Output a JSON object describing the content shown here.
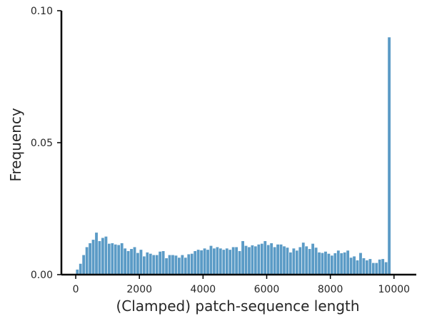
{
  "chart_data": {
    "type": "bar",
    "title": "",
    "xlabel": "(Clamped) patch-sequence length",
    "ylabel": "Frequency",
    "xlim": [
      -450,
      10700
    ],
    "ylim": [
      0,
      0.1
    ],
    "xticks": [
      0,
      2000,
      4000,
      6000,
      8000,
      10000
    ],
    "xtick_labels": [
      "0",
      "2000",
      "4000",
      "6000",
      "8000",
      "10000"
    ],
    "yticks": [
      0,
      0.05,
      0.1
    ],
    "ytick_labels": [
      "0.00",
      "0.05",
      "0.10"
    ],
    "grid": false,
    "bar_color": "#5b9bc6",
    "bar_edge_color": "#ffffff",
    "bin_width": 100,
    "bin_start": 0,
    "values": [
      0.002,
      0.0042,
      0.0075,
      0.0105,
      0.012,
      0.0133,
      0.016,
      0.0128,
      0.014,
      0.0145,
      0.0118,
      0.012,
      0.0115,
      0.0113,
      0.012,
      0.01,
      0.009,
      0.0098,
      0.0105,
      0.0083,
      0.0095,
      0.007,
      0.0085,
      0.008,
      0.0075,
      0.0075,
      0.0088,
      0.009,
      0.0063,
      0.0075,
      0.0075,
      0.0073,
      0.0065,
      0.0075,
      0.0065,
      0.0078,
      0.008,
      0.009,
      0.0095,
      0.0093,
      0.01,
      0.0095,
      0.011,
      0.01,
      0.0105,
      0.01,
      0.0095,
      0.01,
      0.0095,
      0.0105,
      0.0105,
      0.009,
      0.0128,
      0.011,
      0.0105,
      0.0112,
      0.0108,
      0.0115,
      0.0118,
      0.0128,
      0.0113,
      0.012,
      0.0105,
      0.0115,
      0.0115,
      0.0108,
      0.0103,
      0.0085,
      0.01,
      0.0092,
      0.0105,
      0.0122,
      0.0108,
      0.0098,
      0.0118,
      0.0103,
      0.0085,
      0.0083,
      0.0088,
      0.008,
      0.0073,
      0.0082,
      0.0092,
      0.0082,
      0.0085,
      0.0092,
      0.0065,
      0.007,
      0.0055,
      0.0083,
      0.0063,
      0.0055,
      0.006,
      0.0045,
      0.0045,
      0.0058,
      0.006,
      0.0048,
      0.09
    ]
  }
}
